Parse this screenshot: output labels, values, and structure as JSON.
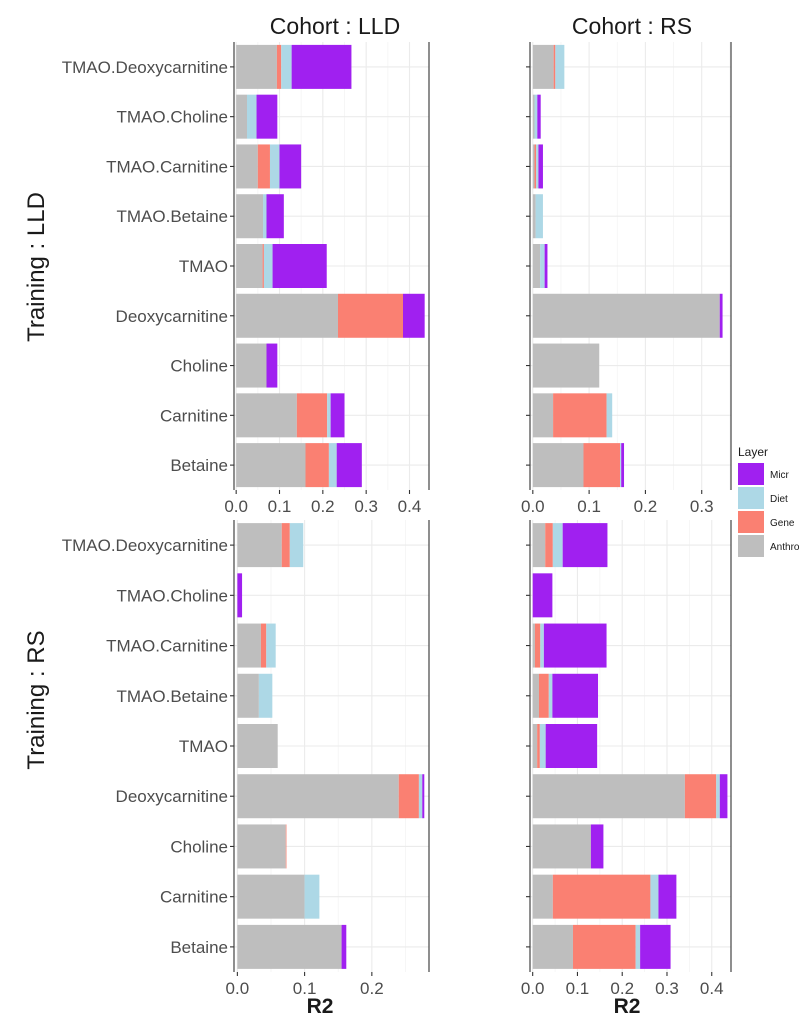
{
  "chart_data": {
    "type": "bar",
    "orientation": "horizontal",
    "stacked": true,
    "col_strips": [
      "Cohort : LLD",
      "Cohort : RS"
    ],
    "row_strips": [
      "Training : LLD",
      "Training : RS"
    ],
    "xlabel": "R2",
    "categories": [
      "TMAO.Deoxycarnitine",
      "TMAO.Choline",
      "TMAO.Carnitine",
      "TMAO.Betaine",
      "TMAO",
      "Deoxycarnitine",
      "Choline",
      "Carnitine",
      "Betaine"
    ],
    "layers": [
      "Anthro",
      "Gene",
      "Diet",
      "Micr"
    ],
    "legend": {
      "title": "Layer",
      "position": "right",
      "items": [
        {
          "label": "Micr",
          "color": "#a020f0"
        },
        {
          "label": "Diet",
          "color": "#add8e6"
        },
        {
          "label": "Gene",
          "color": "#fa8072"
        },
        {
          "label": "Anthro",
          "color": "#bebebe"
        }
      ]
    },
    "grid": true,
    "panels": [
      {
        "training": "LLD",
        "cohort": "LLD",
        "xlim": [
          -0.005,
          0.445
        ],
        "xticks": [
          0.0,
          0.1,
          0.2,
          0.3,
          0.4
        ],
        "tick_labels": [
          "0.0",
          "0.1",
          "0.2",
          "0.3",
          "0.4"
        ],
        "values": [
          [
            0.094,
            0.01,
            0.024,
            0.138
          ],
          [
            0.025,
            0.0,
            0.022,
            0.048
          ],
          [
            0.05,
            0.028,
            0.022,
            0.05
          ],
          [
            0.062,
            0.0,
            0.008,
            0.04
          ],
          [
            0.061,
            0.003,
            0.02,
            0.125
          ],
          [
            0.235,
            0.15,
            0.0,
            0.05
          ],
          [
            0.07,
            0.0,
            0.0,
            0.025
          ],
          [
            0.14,
            0.07,
            0.008,
            0.032
          ],
          [
            0.16,
            0.054,
            0.018,
            0.058
          ]
        ]
      },
      {
        "training": "LLD",
        "cohort": "RS",
        "xlim": [
          -0.005,
          0.352
        ],
        "xticks": [
          0.0,
          0.1,
          0.2,
          0.3
        ],
        "tick_labels": [
          "0.0",
          "0.1",
          "0.2",
          "0.3"
        ],
        "values": [
          [
            0.037,
            0.003,
            0.016,
            0.0
          ],
          [
            0.003,
            0.0,
            0.005,
            0.006
          ],
          [
            0.003,
            0.003,
            0.004,
            0.008
          ],
          [
            0.005,
            0.0,
            0.013,
            0.0
          ],
          [
            0.013,
            0.0,
            0.008,
            0.005
          ],
          [
            0.332,
            0.0,
            0.0,
            0.005
          ],
          [
            0.118,
            0.0,
            0.0,
            0.0
          ],
          [
            0.036,
            0.095,
            0.01,
            0.0
          ],
          [
            0.09,
            0.065,
            0.002,
            0.005
          ]
        ]
      },
      {
        "training": "RS",
        "cohort": "LLD",
        "xlim": [
          -0.005,
          0.285
        ],
        "xticks": [
          0.0,
          0.1,
          0.2
        ],
        "tick_labels": [
          "0.0",
          "0.1",
          "0.2"
        ],
        "values": [
          [
            0.066,
            0.012,
            0.02,
            0.0
          ],
          [
            0.0,
            0.0,
            0.0,
            0.007
          ],
          [
            0.035,
            0.008,
            0.014,
            0.0
          ],
          [
            0.032,
            0.0,
            0.02,
            0.0
          ],
          [
            0.06,
            0.0,
            0.0,
            0.0
          ],
          [
            0.24,
            0.03,
            0.005,
            0.003
          ],
          [
            0.072,
            0.001,
            0.0,
            0.0
          ],
          [
            0.1,
            0.0,
            0.022,
            0.0
          ],
          [
            0.155,
            0.0,
            0.0,
            0.007
          ]
        ]
      },
      {
        "training": "RS",
        "cohort": "RS",
        "xlim": [
          -0.006,
          0.443
        ],
        "xticks": [
          0.0,
          0.1,
          0.2,
          0.3,
          0.4
        ],
        "tick_labels": [
          "0.0",
          "0.1",
          "0.2",
          "0.3",
          "0.4"
        ],
        "values": [
          [
            0.028,
            0.017,
            0.022,
            0.1
          ],
          [
            0.0,
            0.0,
            0.0,
            0.044
          ],
          [
            0.005,
            0.012,
            0.008,
            0.14
          ],
          [
            0.014,
            0.022,
            0.008,
            0.102
          ],
          [
            0.01,
            0.006,
            0.013,
            0.115
          ],
          [
            0.34,
            0.07,
            0.008,
            0.017
          ],
          [
            0.13,
            0.0,
            0.0,
            0.028
          ],
          [
            0.045,
            0.218,
            0.018,
            0.04
          ],
          [
            0.09,
            0.14,
            0.01,
            0.068
          ]
        ]
      }
    ]
  }
}
